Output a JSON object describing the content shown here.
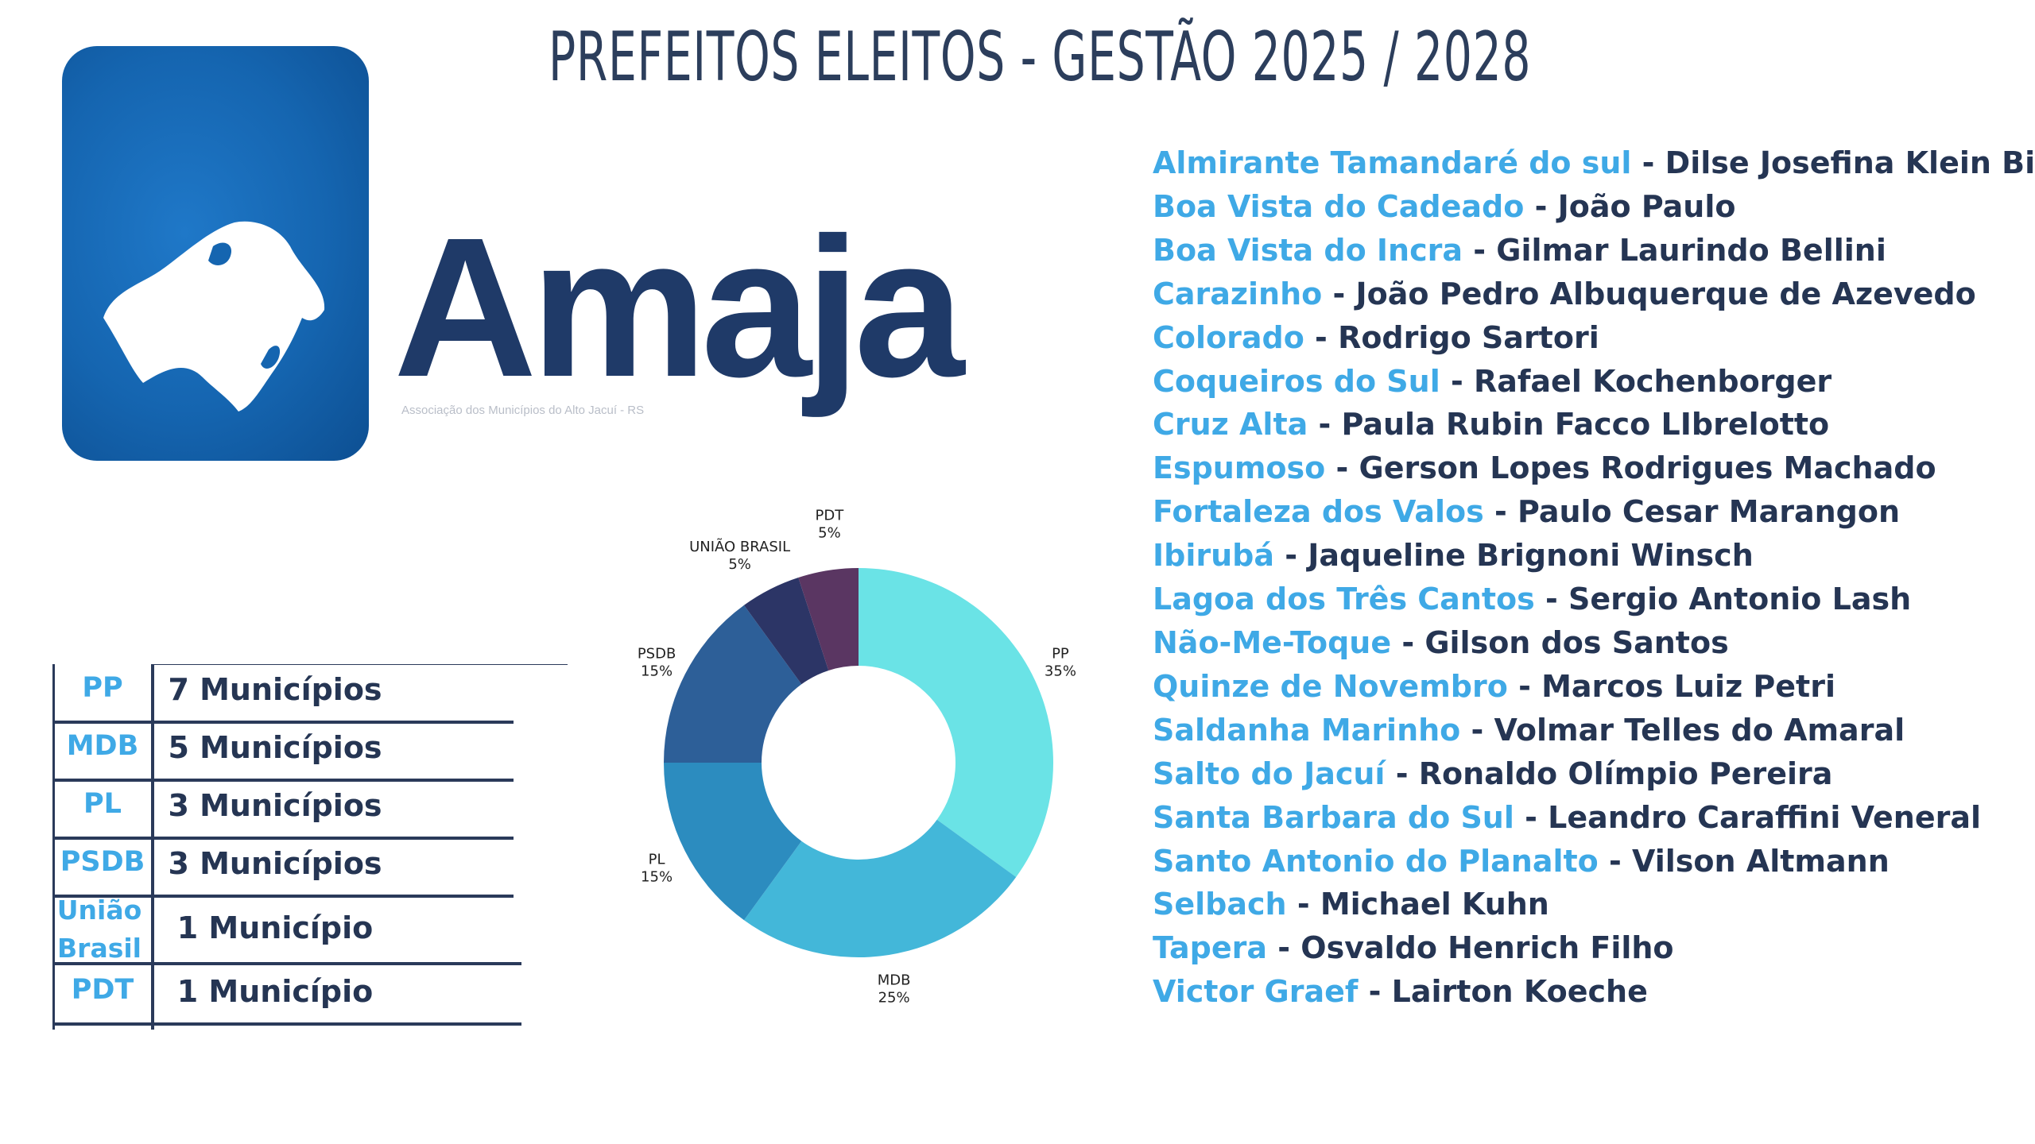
{
  "title": "PREFEITOS ELEITOS - GESTÃO 2025 / 2028",
  "logo": {
    "wordmark": "Amaja",
    "tagline": "Associação dos Municípios do Alto Jacuí - RS"
  },
  "mayors": [
    {
      "city": "Almirante Tamandaré do sul",
      "mayor": "Dilse Josefina Klein Bicigo"
    },
    {
      "city": "Boa Vista do Cadeado",
      "mayor": "João Paulo"
    },
    {
      "city": "Boa Vista do Incra",
      "mayor": "Gilmar Laurindo Bellini"
    },
    {
      "city": "Carazinho",
      "mayor": "João Pedro Albuquerque de Azevedo"
    },
    {
      "city": "Colorado",
      "mayor": "Rodrigo Sartori"
    },
    {
      "city": "Coqueiros do Sul",
      "mayor": "Rafael Kochenborger"
    },
    {
      "city": "Cruz Alta",
      "mayor": "Paula Rubin Facco LIbrelotto"
    },
    {
      "city": "Espumoso",
      "mayor": "Gerson Lopes Rodrigues Machado"
    },
    {
      "city": "Fortaleza dos Valos",
      "mayor": "Paulo Cesar Marangon"
    },
    {
      "city": "Ibirubá",
      "mayor": "Jaqueline Brignoni Winsch"
    },
    {
      "city": "Lagoa dos Três Cantos",
      "mayor": "Sergio Antonio Lash"
    },
    {
      "city": "Não-Me-Toque",
      "mayor": "Gilson dos Santos"
    },
    {
      "city": "Quinze de Novembro",
      "mayor": "Marcos Luiz Petri"
    },
    {
      "city": "Saldanha Marinho",
      "mayor": "Volmar Telles do Amaral"
    },
    {
      "city": "Salto do Jacuí",
      "mayor": "Ronaldo Olímpio Pereira"
    },
    {
      "city": "Santa Barbara do Sul",
      "mayor": "Leandro Caraffini Veneral"
    },
    {
      "city": "Santo Antonio do Planalto",
      "mayor": "Vilson Altmann"
    },
    {
      "city": "Selbach",
      "mayor": "Michael Kuhn"
    },
    {
      "city": "Tapera",
      "mayor": "Osvaldo Henrich Filho"
    },
    {
      "city": "Victor Graef",
      "mayor": "Lairton Koeche"
    }
  ],
  "list_separator": " - ",
  "party_table": [
    {
      "party": "PP",
      "count": "7 Municípios"
    },
    {
      "party": "MDB",
      "count": "5 Municípios"
    },
    {
      "party": "PL",
      "count": "3 Municípios"
    },
    {
      "party": "PSDB",
      "count": "3 Municípios"
    },
    {
      "party": "União Brasil",
      "count": "1 Município"
    },
    {
      "party": "PDT",
      "count": "1 Município"
    }
  ],
  "colors": {
    "city": "#3fa9e6",
    "mayor": "#253553",
    "title": "#2c3e5c",
    "logo_bg": "#1565b0"
  },
  "chart_data": {
    "type": "pie",
    "donut": true,
    "categories": [
      "PP",
      "MDB",
      "PL",
      "PSDB",
      "UNIÃO BRASIL",
      "PDT"
    ],
    "values": [
      35,
      25,
      15,
      15,
      5,
      5
    ],
    "labels": [
      "35%",
      "25%",
      "15%",
      "15%",
      "5%",
      "5%"
    ],
    "colors": [
      "#6ae3e6",
      "#43b7d9",
      "#2c8cbf",
      "#2d5f98",
      "#2c3566",
      "#5a3662"
    ],
    "legend": "none"
  }
}
